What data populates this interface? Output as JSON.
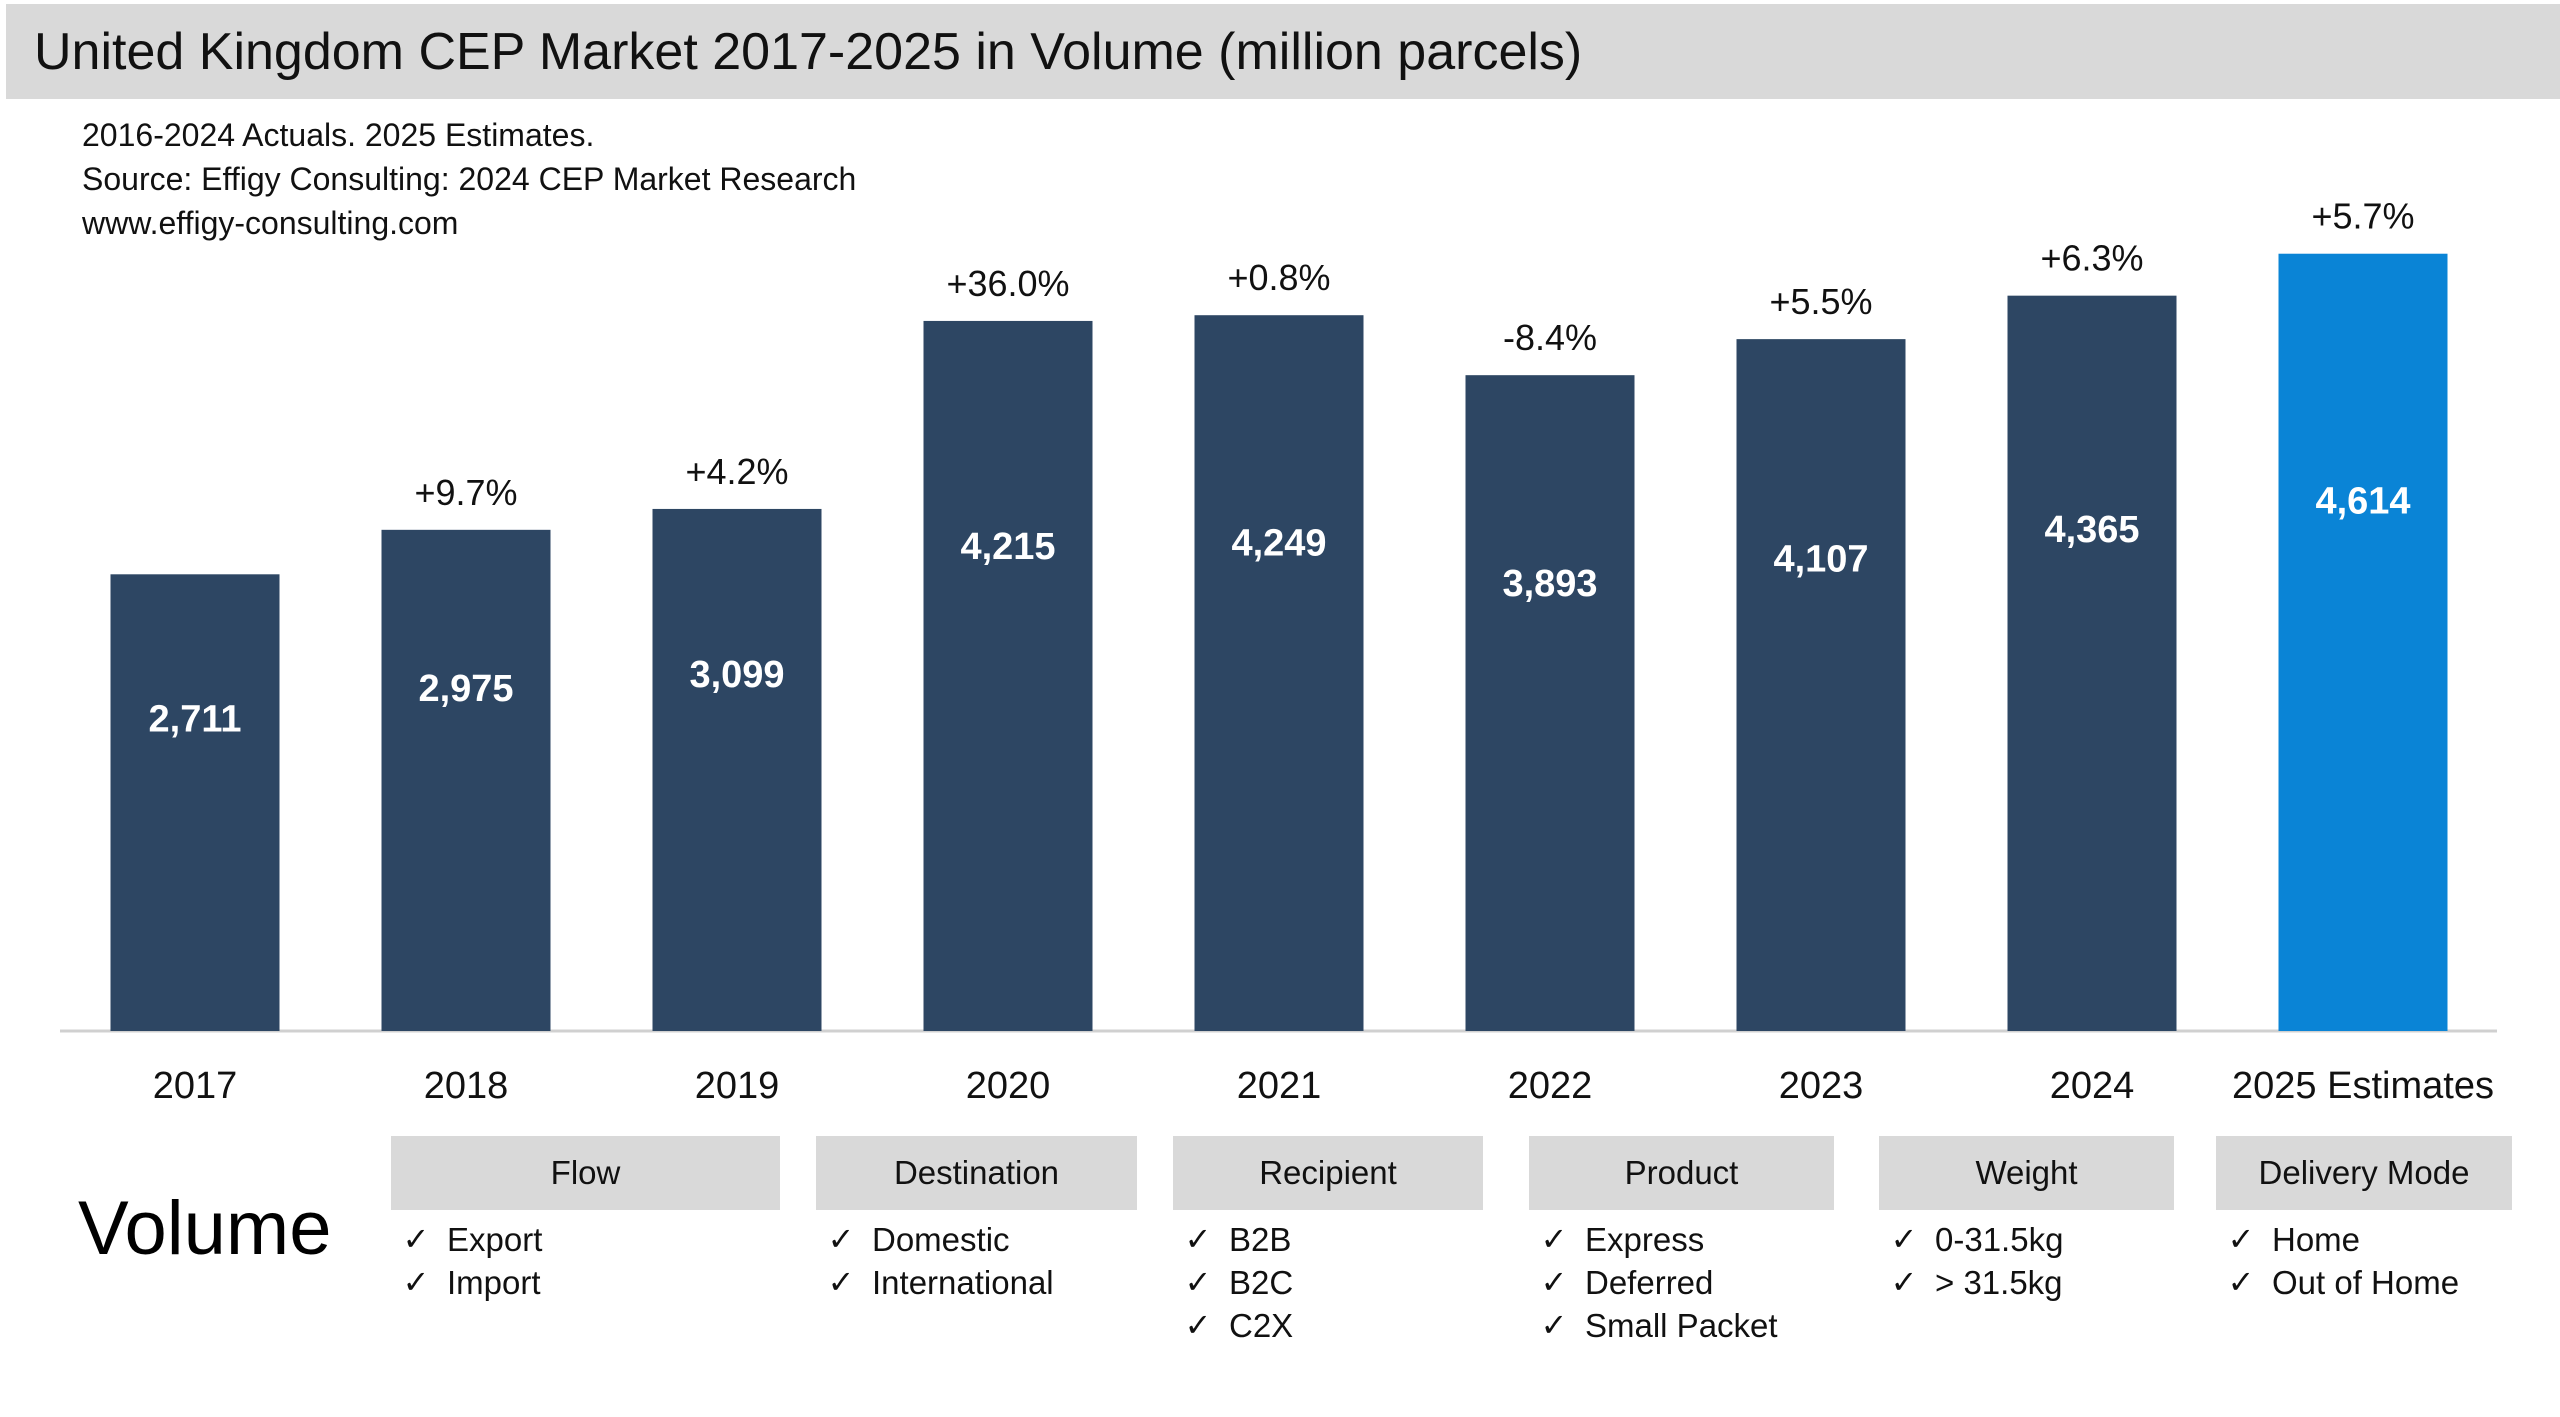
{
  "title": "United Kingdom CEP Market 2017-2025 in Volume (million parcels)",
  "notes": [
    "2016-2024 Actuals. 2025 Estimates.",
    "Source: Effigy Consulting: 2024 CEP Market Research",
    "www.effigy-consulting.com"
  ],
  "colors": {
    "actual": "#2d4663",
    "estimate": "#0a84d6",
    "title_bg": "#d9d9d9",
    "header_bg": "#d9d9d9"
  },
  "chart_data": {
    "type": "bar",
    "title": "United Kingdom CEP Market 2017-2025 in Volume (million parcels)",
    "xlabel": "",
    "ylabel": "",
    "ylim": [
      0,
      5200
    ],
    "grid": false,
    "categories": [
      "2017",
      "2018",
      "2019",
      "2020",
      "2021",
      "2022",
      "2023",
      "2024",
      "2025 Estimates"
    ],
    "values": [
      2711,
      2975,
      3099,
      4215,
      4249,
      3893,
      4107,
      4365,
      4614
    ],
    "value_labels": [
      "2,711",
      "2,975",
      "3,099",
      "4,215",
      "4,249",
      "3,893",
      "4,107",
      "4,365",
      "4,614"
    ],
    "growth_labels": [
      "",
      "+9.7%",
      "+4.2%",
      "+36.0%",
      "+0.8%",
      "-8.4%",
      "+5.5%",
      "+6.3%",
      "+5.7%"
    ],
    "estimate_flags": [
      false,
      false,
      false,
      false,
      false,
      false,
      false,
      false,
      true
    ]
  },
  "volume_label": "Volume",
  "dimensions": [
    {
      "name": "Flow",
      "items": [
        "Export",
        "Import"
      ]
    },
    {
      "name": "Destination",
      "items": [
        "Domestic",
        "International"
      ]
    },
    {
      "name": "Recipient",
      "items": [
        "B2B",
        "B2C",
        "C2X"
      ]
    },
    {
      "name": "Product",
      "items": [
        "Express",
        "Deferred",
        "Small Packet"
      ]
    },
    {
      "name": "Weight",
      "items": [
        "0-31.5kg",
        "> 31.5kg"
      ]
    },
    {
      "name": "Delivery Mode",
      "items": [
        "Home",
        "Out of Home"
      ]
    }
  ],
  "check_symbol": "✓"
}
